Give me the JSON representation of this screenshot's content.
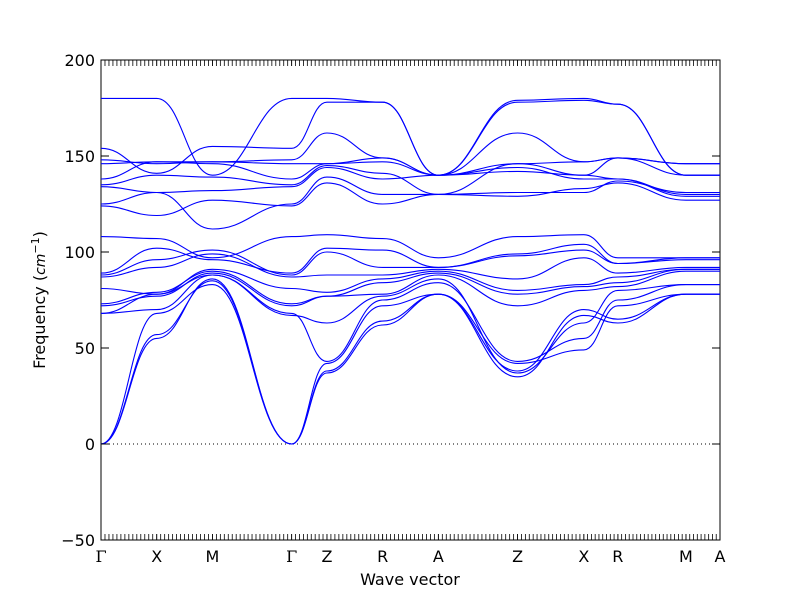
{
  "chart_data": {
    "type": "line",
    "title": "",
    "xlabel": "Wave vector",
    "ylabel_text": "Frequency (",
    "ylabel_unit": "cm",
    "ylabel_exp": "−1",
    "ylabel_close": ")",
    "ylim": [
      -50,
      200
    ],
    "yticks": [
      -50,
      0,
      50,
      100,
      150,
      200
    ],
    "ytick_labels": [
      "−50",
      "0",
      "50",
      "100",
      "150",
      "200"
    ],
    "grid": false,
    "zero_line": "dotted",
    "line_color": "#0000ff",
    "high_symmetry_points": [
      {
        "label": "Γ",
        "pos": 0.0
      },
      {
        "label": "X",
        "pos": 0.09
      },
      {
        "label": "M",
        "pos": 0.18
      },
      {
        "label": "Γ",
        "pos": 0.308
      },
      {
        "label": "Z",
        "pos": 0.365
      },
      {
        "label": "R",
        "pos": 0.455
      },
      {
        "label": "A",
        "pos": 0.545
      },
      {
        "label": "Z",
        "pos": 0.673
      },
      {
        "label": "X",
        "pos": 0.78
      },
      {
        "label": "R",
        "pos": 0.835
      },
      {
        "label": "M",
        "pos": 0.945
      },
      {
        "label": "A",
        "pos": 1.0
      }
    ],
    "bands": [
      [
        0,
        55,
        86,
        0,
        37,
        62,
        78,
        35,
        67,
        63,
        78
      ],
      [
        0,
        57,
        85,
        0,
        38,
        64,
        78,
        38,
        70,
        65,
        78
      ],
      [
        0,
        68,
        83,
        0,
        42,
        72,
        78,
        42,
        49,
        72,
        78
      ],
      [
        68,
        78,
        88,
        68,
        43,
        75,
        84,
        43,
        55,
        75,
        83
      ],
      [
        68,
        70,
        88,
        67,
        63,
        77,
        86,
        37,
        63,
        80,
        83
      ],
      [
        72,
        77,
        89,
        72,
        77,
        78,
        88,
        72,
        80,
        82,
        90
      ],
      [
        73,
        79,
        90,
        73,
        77,
        84,
        89,
        78,
        82,
        84,
        91
      ],
      [
        81,
        78,
        91,
        81,
        79,
        86,
        90,
        80,
        83,
        87,
        91
      ],
      [
        87,
        92,
        99,
        87,
        88,
        88,
        91,
        86,
        97,
        89,
        92
      ],
      [
        88,
        96,
        101,
        88,
        100,
        92,
        92,
        98,
        101,
        94,
        96
      ],
      [
        89,
        102,
        96,
        89,
        102,
        101,
        92,
        99,
        104,
        94,
        97
      ],
      [
        108,
        107,
        97,
        108,
        109,
        107,
        97,
        108,
        109,
        97,
        97
      ],
      [
        124,
        119,
        127,
        124,
        136,
        125,
        130,
        129,
        133,
        136,
        127
      ],
      [
        125,
        131,
        112,
        125,
        139,
        130,
        130,
        131,
        131,
        137,
        131
      ],
      [
        134,
        131,
        132,
        134,
        144,
        138,
        140,
        144,
        138,
        138,
        129
      ],
      [
        135,
        140,
        139,
        135,
        145,
        141,
        130,
        146,
        140,
        138,
        130
      ],
      [
        138,
        147,
        146,
        138,
        146,
        147,
        140,
        142,
        140,
        149,
        140
      ],
      [
        146,
        147,
        147,
        146,
        146,
        149,
        140,
        146,
        147,
        149,
        146
      ],
      [
        148,
        146,
        147,
        148,
        162,
        149,
        140,
        162,
        147,
        149,
        146
      ],
      [
        154,
        141,
        155,
        154,
        178,
        178,
        140,
        178,
        179,
        177,
        140
      ],
      [
        180,
        180,
        140,
        180,
        180,
        178,
        140,
        179,
        180,
        177,
        140
      ]
    ]
  }
}
